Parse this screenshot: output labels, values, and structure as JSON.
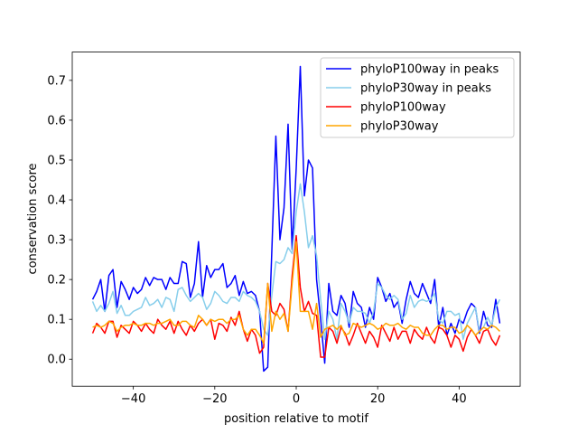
{
  "chart_data": {
    "type": "line",
    "title": "",
    "xlabel": "position relative to motif",
    "ylabel": "conservation score",
    "xlim": [
      -55,
      55
    ],
    "ylim": [
      -0.068,
      0.771
    ],
    "xticks": [
      -40,
      -20,
      0,
      20,
      40
    ],
    "xtick_labels": [
      "−40",
      "−20",
      "0",
      "20",
      "40"
    ],
    "yticks": [
      0.0,
      0.1,
      0.2,
      0.3,
      0.4,
      0.5,
      0.6,
      0.7
    ],
    "ytick_labels": [
      "0.0",
      "0.1",
      "0.2",
      "0.3",
      "0.4",
      "0.5",
      "0.6",
      "0.7"
    ],
    "legend_position": "top-right",
    "x_start": -50,
    "x_step": 1,
    "series": [
      {
        "name": "phyloP100way in peaks",
        "color": "#0000ff",
        "values": [
          0.15,
          0.17,
          0.2,
          0.12,
          0.21,
          0.225,
          0.13,
          0.195,
          0.175,
          0.15,
          0.18,
          0.165,
          0.175,
          0.205,
          0.185,
          0.205,
          0.2,
          0.2,
          0.175,
          0.205,
          0.19,
          0.19,
          0.245,
          0.24,
          0.155,
          0.19,
          0.295,
          0.155,
          0.235,
          0.205,
          0.225,
          0.225,
          0.24,
          0.18,
          0.19,
          0.21,
          0.16,
          0.195,
          0.165,
          0.17,
          0.16,
          0.12,
          -0.03,
          -0.02,
          0.27,
          0.56,
          0.3,
          0.38,
          0.59,
          0.275,
          0.48,
          0.735,
          0.41,
          0.5,
          0.48,
          0.2,
          0.1,
          -0.01,
          0.19,
          0.12,
          0.11,
          0.16,
          0.14,
          0.08,
          0.17,
          0.14,
          0.13,
          0.08,
          0.13,
          0.1,
          0.205,
          0.18,
          0.145,
          0.165,
          0.13,
          0.145,
          0.09,
          0.15,
          0.195,
          0.165,
          0.155,
          0.19,
          0.165,
          0.14,
          0.2,
          0.08,
          0.13,
          0.06,
          0.09,
          0.065,
          0.1,
          0.09,
          0.12,
          0.14,
          0.13,
          0.065,
          0.12,
          0.085,
          0.08,
          0.15,
          0.09
        ]
      },
      {
        "name": "phyloP30way in peaks",
        "color": "#87ceeb",
        "values": [
          0.145,
          0.12,
          0.135,
          0.12,
          0.14,
          0.17,
          0.115,
          0.135,
          0.11,
          0.11,
          0.12,
          0.125,
          0.13,
          0.155,
          0.135,
          0.14,
          0.15,
          0.13,
          0.155,
          0.15,
          0.12,
          0.175,
          0.18,
          0.16,
          0.145,
          0.155,
          0.165,
          0.155,
          0.125,
          0.14,
          0.17,
          0.16,
          0.145,
          0.14,
          0.155,
          0.155,
          0.145,
          0.17,
          0.16,
          0.155,
          0.145,
          0.12,
          0.075,
          0.06,
          0.16,
          0.245,
          0.24,
          0.25,
          0.28,
          0.265,
          0.37,
          0.44,
          0.37,
          0.28,
          0.31,
          0.26,
          0.15,
          0.05,
          0.12,
          0.1,
          0.05,
          0.14,
          0.12,
          0.09,
          0.13,
          0.12,
          0.12,
          0.115,
          0.09,
          0.12,
          0.19,
          0.18,
          0.16,
          0.15,
          0.16,
          0.15,
          0.1,
          0.115,
          0.16,
          0.13,
          0.145,
          0.15,
          0.145,
          0.15,
          0.165,
          0.1,
          0.09,
          0.12,
          0.12,
          0.11,
          0.115,
          0.05,
          0.09,
          0.11,
          0.13,
          0.07,
          0.08,
          0.105,
          0.085,
          0.13,
          0.15
        ]
      },
      {
        "name": "phyloP100way",
        "color": "#ff0000",
        "values": [
          0.065,
          0.09,
          0.08,
          0.065,
          0.095,
          0.095,
          0.055,
          0.085,
          0.075,
          0.065,
          0.095,
          0.085,
          0.07,
          0.09,
          0.075,
          0.065,
          0.1,
          0.085,
          0.075,
          0.095,
          0.065,
          0.095,
          0.075,
          0.06,
          0.085,
          0.07,
          0.09,
          0.1,
          0.085,
          0.1,
          0.05,
          0.09,
          0.085,
          0.07,
          0.105,
          0.085,
          0.12,
          0.075,
          0.045,
          0.075,
          0.06,
          0.015,
          0.03,
          0.19,
          0.12,
          0.11,
          0.14,
          0.125,
          0.07,
          0.21,
          0.31,
          0.18,
          0.12,
          0.145,
          0.115,
          0.11,
          0.005,
          0.005,
          0.08,
          0.07,
          0.04,
          0.08,
          0.065,
          0.035,
          0.06,
          0.09,
          0.065,
          0.04,
          0.07,
          0.055,
          0.03,
          0.085,
          0.065,
          0.045,
          0.08,
          0.05,
          0.07,
          0.07,
          0.04,
          0.075,
          0.06,
          0.05,
          0.08,
          0.055,
          0.04,
          0.08,
          0.075,
          0.06,
          0.03,
          0.06,
          0.05,
          0.02,
          0.055,
          0.075,
          0.06,
          0.04,
          0.07,
          0.075,
          0.05,
          0.035,
          0.06
        ]
      },
      {
        "name": "phyloP30way",
        "color": "#ffa500",
        "values": [
          0.08,
          0.085,
          0.08,
          0.085,
          0.095,
          0.09,
          0.07,
          0.08,
          0.085,
          0.085,
          0.09,
          0.085,
          0.085,
          0.09,
          0.09,
          0.085,
          0.09,
          0.09,
          0.095,
          0.1,
          0.085,
          0.085,
          0.095,
          0.095,
          0.085,
          0.08,
          0.11,
          0.1,
          0.085,
          0.1,
          0.095,
          0.1,
          0.1,
          0.09,
          0.1,
          0.1,
          0.11,
          0.075,
          0.06,
          0.075,
          0.075,
          0.06,
          0.04,
          0.19,
          0.07,
          0.12,
          0.1,
          0.115,
          0.07,
          0.19,
          0.295,
          0.12,
          0.12,
          0.12,
          0.075,
          0.14,
          0.055,
          0.075,
          0.08,
          0.085,
          0.075,
          0.085,
          0.06,
          0.065,
          0.09,
          0.085,
          0.08,
          0.085,
          0.09,
          0.085,
          0.075,
          0.08,
          0.09,
          0.085,
          0.085,
          0.09,
          0.08,
          0.075,
          0.085,
          0.08,
          0.08,
          0.065,
          0.06,
          0.06,
          0.075,
          0.085,
          0.085,
          0.075,
          0.08,
          0.08,
          0.065,
          0.07,
          0.085,
          0.075,
          0.06,
          0.07,
          0.08,
          0.075,
          0.085,
          0.08,
          0.07
        ]
      }
    ]
  }
}
